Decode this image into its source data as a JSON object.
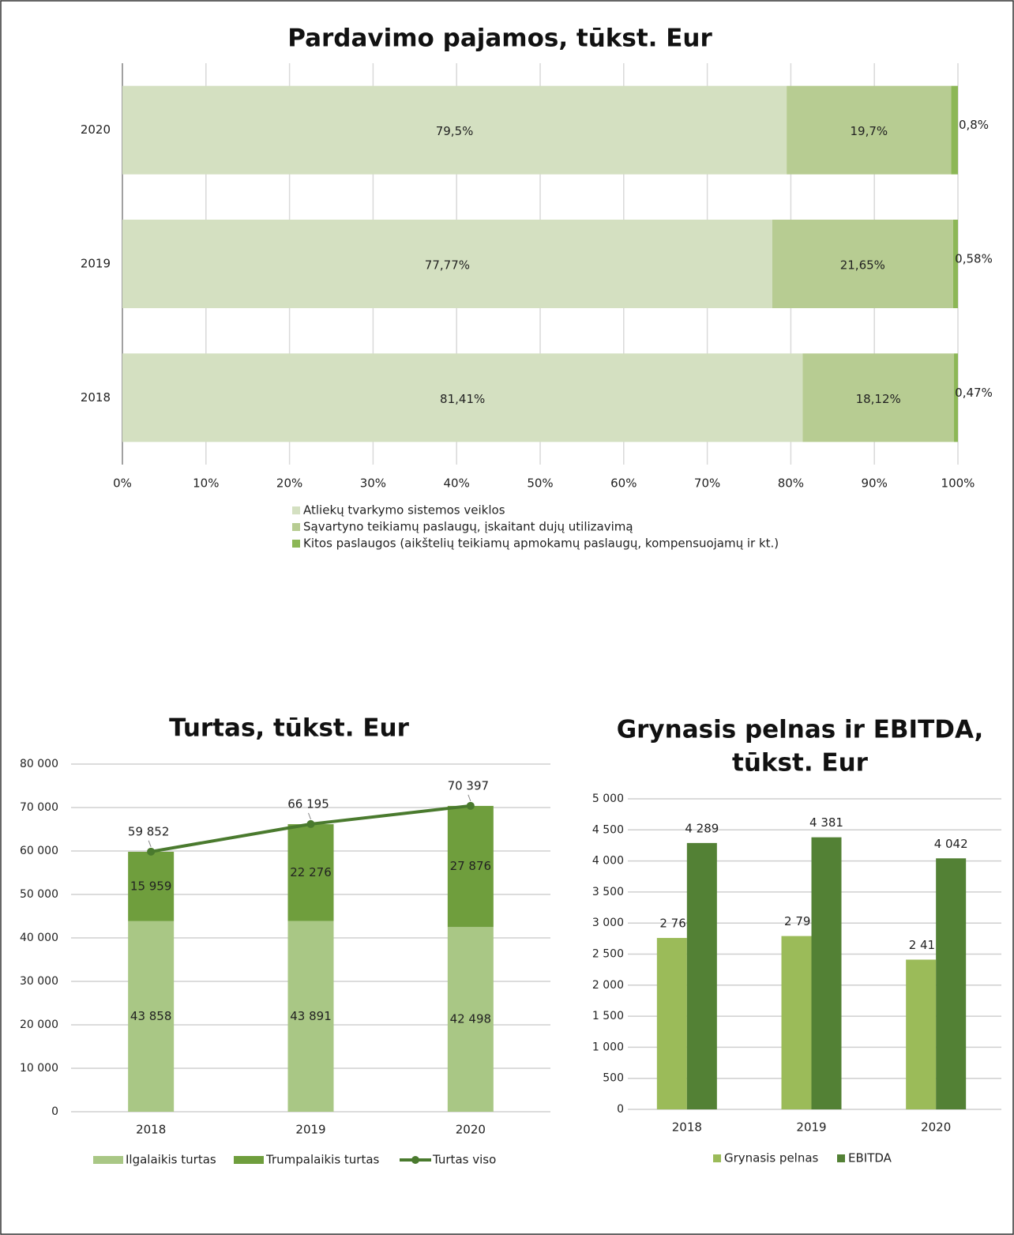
{
  "chart_data": [
    {
      "type": "hbar_stacked",
      "title": "Pardavimo pajamos, tūkst. Eur",
      "categories": [
        "2020",
        "2019",
        "2018"
      ],
      "series": [
        {
          "name": "Atliekų tvarkymo sistemos veiklos",
          "color": "#d4e0c1",
          "values": [
            79.5,
            77.77,
            81.41
          ],
          "value_labels": [
            "79,5%",
            "77,77%",
            "81,41%"
          ]
        },
        {
          "name": "Sąvartyno teikiamų paslaugų, įskaitant dujų utilizavimą",
          "color": "#b7cc92",
          "values": [
            19.7,
            21.65,
            18.12
          ],
          "value_labels": [
            "19,7%",
            "21,65%",
            "18,12%"
          ]
        },
        {
          "name": "Kitos paslaugos (aikštelių teikiamų apmokamų paslaugų, kompensuojamų ir kt.)",
          "color": "#8cb756",
          "values": [
            0.8,
            0.58,
            0.47
          ],
          "value_labels": [
            "0,8%",
            "0,58%",
            "0,47%"
          ]
        }
      ],
      "xlim": [
        0,
        100
      ],
      "xticks": [
        {
          "value": 0,
          "label": "0%"
        },
        {
          "value": 10,
          "label": "10%"
        },
        {
          "value": 20,
          "label": "20%"
        },
        {
          "value": 30,
          "label": "30%"
        },
        {
          "value": 40,
          "label": "40%"
        },
        {
          "value": 50,
          "label": "50%"
        },
        {
          "value": 60,
          "label": "60%"
        },
        {
          "value": 70,
          "label": "70%"
        },
        {
          "value": 80,
          "label": "80%"
        },
        {
          "value": 90,
          "label": "90%"
        },
        {
          "value": 100,
          "label": "100%"
        }
      ],
      "grid": true
    },
    {
      "type": "stacked_line",
      "title": "Turtas, tūkst. Eur",
      "categories": [
        "2018",
        "2019",
        "2020"
      ],
      "series": [
        {
          "name": "Ilgalaikis turtas",
          "color": "#a9c785",
          "values": [
            43858,
            43891,
            42498
          ],
          "value_labels": [
            "43 858",
            "43 891",
            "42 498"
          ]
        },
        {
          "name": "Trumpalaikis turtas",
          "color": "#6f9e3d",
          "values": [
            15959,
            22276,
            27876
          ],
          "value_labels": [
            "15 959",
            "22 276",
            "27 876"
          ]
        },
        {
          "name": "Turtas viso",
          "color": "#4a7a2e",
          "kind": "line",
          "values": [
            59852,
            66195,
            70397
          ],
          "value_labels": [
            "59 852",
            "66 195",
            "70 397"
          ]
        }
      ],
      "ylim": [
        0,
        80000
      ],
      "yticks": [
        0,
        {
          "value": 10000,
          "label": "10 000"
        },
        {
          "value": 20000,
          "label": "20 000"
        },
        {
          "value": 30000,
          "label": "30 000"
        },
        {
          "value": 40000,
          "label": "40 000"
        },
        {
          "value": 50000,
          "label": "50 000"
        },
        {
          "value": 60000,
          "label": "60 000"
        },
        {
          "value": 70000,
          "label": "70 000"
        },
        {
          "value": 80000,
          "label": "80 000"
        }
      ],
      "grid": true
    },
    {
      "type": "grouped_bar",
      "title": [
        "Grynasis pelnas ir EBITDA,",
        "tūkst. Eur"
      ],
      "categories": [
        "2018",
        "2019",
        "2020"
      ],
      "series": [
        {
          "name": "Grynasis pelnas",
          "color": "#9bbb59",
          "values": [
            2760,
            2791,
            2411
          ],
          "value_labels": [
            "2 760",
            "2 791",
            "2 411"
          ]
        },
        {
          "name": "EBITDA",
          "color": "#538135",
          "values": [
            4289,
            4381,
            4042
          ],
          "value_labels": [
            "4 289",
            "4 381",
            "4 042"
          ]
        }
      ],
      "ylim": [
        0,
        5000
      ],
      "yticks": [
        0,
        500,
        {
          "value": 1000,
          "label": "1 000"
        },
        {
          "value": 1500,
          "label": "1 500"
        },
        {
          "value": 2000,
          "label": "2 000"
        },
        {
          "value": 2500,
          "label": "2 500"
        },
        {
          "value": 3000,
          "label": "3 000"
        },
        {
          "value": 3500,
          "label": "3 500"
        },
        {
          "value": 4000,
          "label": "4 000"
        },
        {
          "value": 4500,
          "label": "4 500"
        },
        {
          "value": 5000,
          "label": "5 000"
        }
      ],
      "grid": true
    }
  ]
}
